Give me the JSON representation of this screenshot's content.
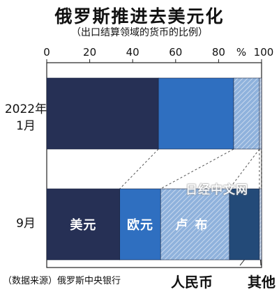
{
  "title": "俄罗斯推进去美元化",
  "subtitle": "（出口结算领域的货币的比例）",
  "source": "（数据来源）俄罗斯中央银行",
  "watermark": "日经中文网",
  "chart_data": {
    "type": "bar",
    "orientation": "horizontal",
    "stacked": true,
    "percent_unit_label": "%",
    "xlim": [
      0,
      100
    ],
    "xticks": [
      "0",
      "20",
      "40",
      "60",
      "80",
      "100"
    ],
    "categories": [
      "2022年1月",
      "9月"
    ],
    "category_lines": [
      [
        "2022年",
        "1月"
      ],
      [
        "9月"
      ]
    ],
    "series": [
      {
        "name": "美元",
        "values": [
          52,
          34
        ],
        "color": "#263055",
        "pattern": false,
        "label_position": "inside"
      },
      {
        "name": "欧元",
        "values": [
          35,
          19
        ],
        "color": "#2f6fc0",
        "pattern": false,
        "label_position": "inside"
      },
      {
        "name": "卢布",
        "values": [
          12,
          32
        ],
        "color": "#8fb2dc",
        "pattern": true,
        "label_position": "inside"
      },
      {
        "name": "人民币",
        "values": [
          0,
          14
        ],
        "color": "#234a78",
        "pattern": false,
        "label_position": "below"
      },
      {
        "name": "其他",
        "values": [
          1,
          1
        ],
        "color": "#b9cbe3",
        "pattern": true,
        "label_position": "below"
      }
    ],
    "inside_label_text_color": "#ffffff",
    "connector_lines": "dashed",
    "grid": false,
    "legend": "none"
  }
}
